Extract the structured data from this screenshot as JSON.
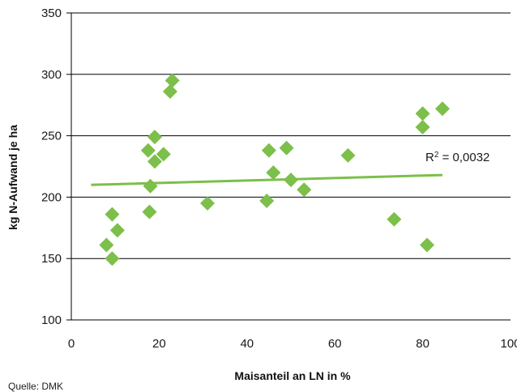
{
  "chart_data": {
    "type": "scatter",
    "title": "",
    "xlabel": "Maisanteil an LN in %",
    "ylabel": "kg N-Aufwand je ha",
    "xlim": [
      0,
      100
    ],
    "ylim": [
      100,
      350
    ],
    "xticks": [
      0,
      20,
      40,
      60,
      80,
      100
    ],
    "yticks": [
      100,
      150,
      200,
      250,
      300,
      350
    ],
    "grid": "horizontal",
    "legend": "none",
    "colors": {
      "marker": "#7cbf4a",
      "trendline": "#7cbf4a",
      "grid": "#000000"
    },
    "series": [
      {
        "points": [
          {
            "x": 8,
            "y": 161
          },
          {
            "x": 9.3,
            "y": 150
          },
          {
            "x": 9.3,
            "y": 186
          },
          {
            "x": 10.5,
            "y": 173
          },
          {
            "x": 17.5,
            "y": 238
          },
          {
            "x": 17.8,
            "y": 188
          },
          {
            "x": 18,
            "y": 209
          },
          {
            "x": 19,
            "y": 229
          },
          {
            "x": 19,
            "y": 249
          },
          {
            "x": 21,
            "y": 235
          },
          {
            "x": 22.5,
            "y": 286
          },
          {
            "x": 23,
            "y": 295
          },
          {
            "x": 31,
            "y": 195
          },
          {
            "x": 44.5,
            "y": 197
          },
          {
            "x": 45,
            "y": 238
          },
          {
            "x": 46,
            "y": 220
          },
          {
            "x": 49,
            "y": 240
          },
          {
            "x": 50,
            "y": 214
          },
          {
            "x": 53,
            "y": 206
          },
          {
            "x": 63,
            "y": 234
          },
          {
            "x": 73.5,
            "y": 182
          },
          {
            "x": 80,
            "y": 257
          },
          {
            "x": 80,
            "y": 268
          },
          {
            "x": 81,
            "y": 161
          },
          {
            "x": 84.5,
            "y": 272
          }
        ]
      }
    ],
    "trendline": {
      "x": [
        4.5,
        84.5
      ],
      "y": [
        210,
        218
      ]
    },
    "annotations": {
      "r2_prefix": "R",
      "r2_exp": "2",
      "r2_value": " = 0,0032"
    },
    "source": "Quelle: DMK"
  }
}
